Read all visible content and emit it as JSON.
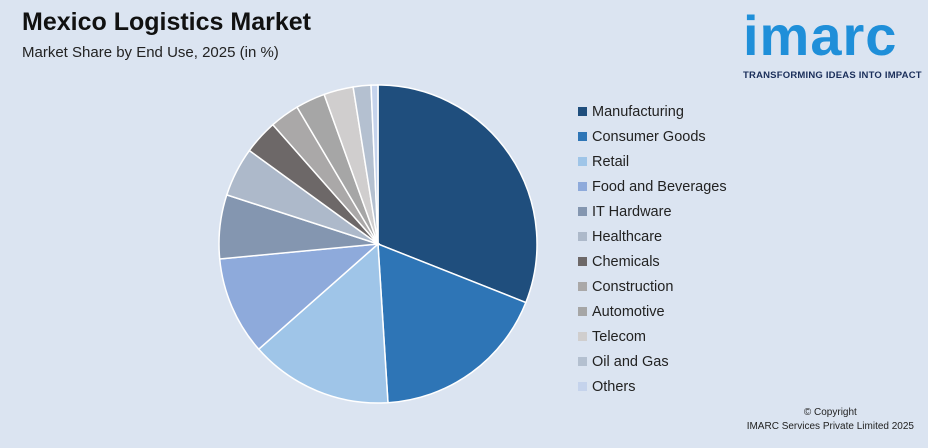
{
  "header": {
    "title": "Mexico Logistics Market",
    "subtitle": "Market Share by End Use, 2025 (in %)"
  },
  "logo": {
    "word": "imarc",
    "tagline": "TRANSFORMING IDEAS INTO IMPACT"
  },
  "footer": {
    "copyright": "© Copyright",
    "company": "IMARC Services Private Limited 2025"
  },
  "chart_data": {
    "type": "pie",
    "title": "Mexico Logistics Market",
    "subtitle": "Market Share by End Use, 2025 (in %)",
    "legend_position": "right",
    "categories": [
      "Manufacturing",
      "Consumer Goods",
      "Retail",
      "Food and Beverages",
      "IT Hardware",
      "Healthcare",
      "Chemicals",
      "Construction",
      "Automotive",
      "Telecom",
      "Oil and Gas",
      "Others"
    ],
    "values": [
      31,
      18,
      14.5,
      10,
      6.5,
      5,
      3.5,
      3,
      3,
      3,
      1.8,
      0.7
    ],
    "colors": [
      "#1f4e7d",
      "#2e75b6",
      "#9fc5e8",
      "#8eaadb",
      "#8496b0",
      "#adb9ca",
      "#6d6868",
      "#aaa8a8",
      "#a6a6a6",
      "#d0cece",
      "#b4c0d0",
      "#c5d3ec"
    ]
  }
}
